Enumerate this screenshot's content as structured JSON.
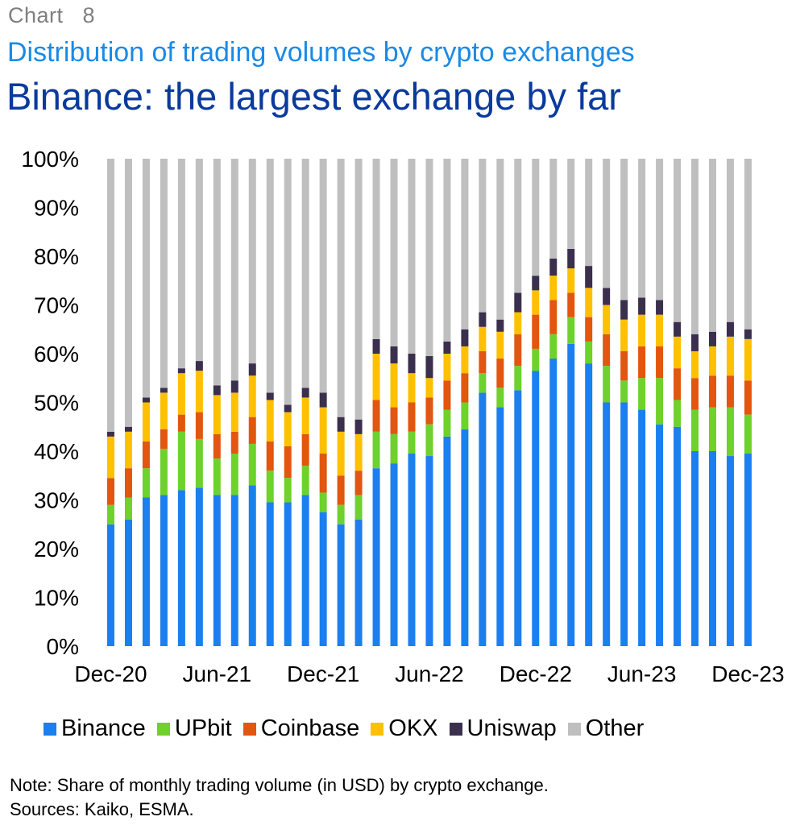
{
  "header": {
    "chart_label": "Chart   8",
    "subtitle": "Distribution of trading volumes by crypto exchanges",
    "title": "Binance: the largest exchange by far"
  },
  "footer": {
    "note": "Note: Share of monthly trading volume (in USD) by crypto exchange.",
    "sources": "Sources: Kaiko, ESMA."
  },
  "chart_data": {
    "type": "bar",
    "stacked": true,
    "ylim": [
      0,
      1
    ],
    "ytick_labels": [
      "0%",
      "10%",
      "20%",
      "30%",
      "40%",
      "50%",
      "60%",
      "70%",
      "80%",
      "90%",
      "100%"
    ],
    "xtick_labels": [
      "Dec-20",
      "Jun-21",
      "Dec-21",
      "Jun-22",
      "Dec-22",
      "Jun-23",
      "Dec-23"
    ],
    "xtick_positions": [
      0,
      6,
      12,
      18,
      24,
      30,
      36
    ],
    "categories": [
      "Dec-20",
      "Jan-21",
      "Feb-21",
      "Mar-21",
      "Apr-21",
      "May-21",
      "Jun-21",
      "Jul-21",
      "Aug-21",
      "Sep-21",
      "Oct-21",
      "Nov-21",
      "Dec-21",
      "Jan-22",
      "Feb-22",
      "Mar-22",
      "Apr-22",
      "May-22",
      "Jun-22",
      "Jul-22",
      "Aug-22",
      "Sep-22",
      "Oct-22",
      "Nov-22",
      "Dec-22",
      "Jan-23",
      "Feb-23",
      "Mar-23",
      "Apr-23",
      "May-23",
      "Jun-23",
      "Jul-23",
      "Aug-23",
      "Sep-23",
      "Oct-23",
      "Nov-23",
      "Dec-23"
    ],
    "legend_position": "bottom",
    "grid": false,
    "series": [
      {
        "name": "Binance",
        "color": "#1b7ff0",
        "values": [
          0.25,
          0.26,
          0.305,
          0.31,
          0.32,
          0.325,
          0.31,
          0.31,
          0.33,
          0.295,
          0.295,
          0.31,
          0.275,
          0.25,
          0.26,
          0.365,
          0.375,
          0.395,
          0.39,
          0.43,
          0.445,
          0.52,
          0.49,
          0.525,
          0.565,
          0.59,
          0.62,
          0.58,
          0.5,
          0.5,
          0.485,
          0.455,
          0.45,
          0.4,
          0.4,
          0.39,
          0.395
        ]
      },
      {
        "name": "UPbit",
        "color": "#6ed12c",
        "values": [
          0.04,
          0.045,
          0.06,
          0.095,
          0.12,
          0.1,
          0.075,
          0.085,
          0.085,
          0.065,
          0.05,
          0.06,
          0.04,
          0.04,
          0.05,
          0.075,
          0.06,
          0.045,
          0.065,
          0.055,
          0.055,
          0.04,
          0.04,
          0.05,
          0.045,
          0.05,
          0.055,
          0.045,
          0.075,
          0.045,
          0.065,
          0.095,
          0.055,
          0.085,
          0.09,
          0.1,
          0.08
        ]
      },
      {
        "name": "Coinbase",
        "color": "#e2560f",
        "values": [
          0.055,
          0.06,
          0.055,
          0.04,
          0.035,
          0.055,
          0.05,
          0.045,
          0.055,
          0.06,
          0.065,
          0.065,
          0.08,
          0.06,
          0.05,
          0.065,
          0.055,
          0.06,
          0.055,
          0.06,
          0.06,
          0.045,
          0.06,
          0.065,
          0.07,
          0.07,
          0.05,
          0.05,
          0.065,
          0.06,
          0.065,
          0.065,
          0.065,
          0.065,
          0.065,
          0.065,
          0.07
        ]
      },
      {
        "name": "OKX",
        "color": "#ffc000",
        "values": [
          0.085,
          0.075,
          0.08,
          0.075,
          0.085,
          0.085,
          0.08,
          0.08,
          0.085,
          0.085,
          0.07,
          0.075,
          0.095,
          0.09,
          0.075,
          0.095,
          0.09,
          0.06,
          0.04,
          0.055,
          0.055,
          0.05,
          0.055,
          0.045,
          0.05,
          0.05,
          0.05,
          0.06,
          0.06,
          0.065,
          0.065,
          0.065,
          0.065,
          0.055,
          0.06,
          0.08,
          0.085
        ]
      },
      {
        "name": "Uniswap",
        "color": "#3b2f4e",
        "values": [
          0.01,
          0.01,
          0.01,
          0.01,
          0.01,
          0.02,
          0.02,
          0.025,
          0.025,
          0.015,
          0.015,
          0.02,
          0.03,
          0.03,
          0.03,
          0.03,
          0.035,
          0.04,
          0.045,
          0.025,
          0.035,
          0.03,
          0.025,
          0.04,
          0.03,
          0.035,
          0.04,
          0.045,
          0.035,
          0.04,
          0.035,
          0.03,
          0.03,
          0.035,
          0.03,
          0.03,
          0.02
        ]
      },
      {
        "name": "Other",
        "color": "#bfbfbf",
        "values": [
          0.56,
          0.55,
          0.49,
          0.47,
          0.43,
          0.415,
          0.465,
          0.455,
          0.42,
          0.48,
          0.505,
          0.47,
          0.48,
          0.53,
          0.535,
          0.37,
          0.385,
          0.4,
          0.405,
          0.375,
          0.35,
          0.315,
          0.33,
          0.275,
          0.24,
          0.205,
          0.185,
          0.22,
          0.265,
          0.29,
          0.285,
          0.29,
          0.335,
          0.36,
          0.355,
          0.335,
          0.35
        ]
      }
    ]
  }
}
